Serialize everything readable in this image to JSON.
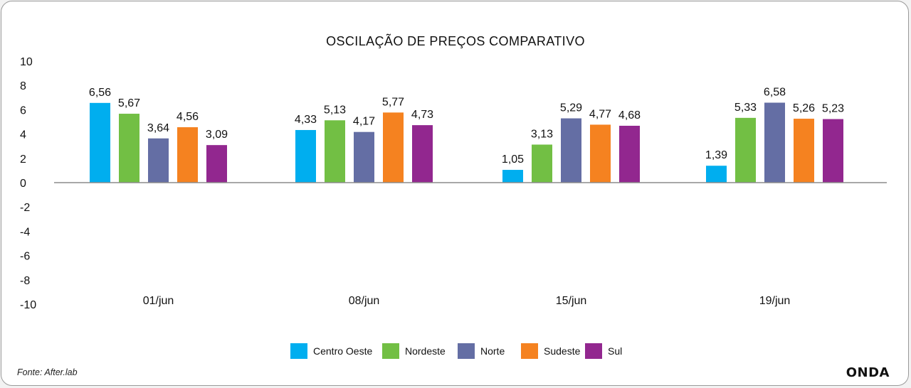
{
  "chart_data": {
    "type": "bar",
    "title": "OSCILAÇÃO DE PREÇOS COMPARATIVO",
    "categories": [
      "01/jun",
      "08/jun",
      "15/jun",
      "19/jun"
    ],
    "series": [
      {
        "name": "Centro Oeste",
        "color": "#00aeef",
        "values": [
          6.56,
          4.33,
          1.05,
          1.39
        ],
        "labels": [
          "6,56",
          "4,33",
          "1,05",
          "1,39"
        ]
      },
      {
        "name": "Nordeste",
        "color": "#72bf44",
        "values": [
          5.67,
          5.13,
          3.13,
          5.33
        ],
        "labels": [
          "5,67",
          "5,13",
          "3,13",
          "5,33"
        ]
      },
      {
        "name": "Norte",
        "color": "#646ea4",
        "values": [
          3.64,
          4.17,
          5.29,
          6.58
        ],
        "labels": [
          "3,64",
          "4,17",
          "5,29",
          "6,58"
        ]
      },
      {
        "name": "Sudeste",
        "color": "#f58220",
        "values": [
          4.56,
          5.77,
          4.77,
          5.26
        ],
        "labels": [
          "4,56",
          "5,77",
          "4,77",
          "5,26"
        ]
      },
      {
        "name": "Sul",
        "color": "#92278f",
        "values": [
          3.09,
          4.73,
          4.68,
          5.23
        ],
        "labels": [
          "3,09",
          "4,73",
          "4,68",
          "5,23"
        ]
      }
    ],
    "ylim": [
      -10,
      10
    ],
    "yticks": [
      "10",
      "8",
      "6",
      "4",
      "2",
      "0",
      "-2",
      "-4",
      "-6",
      "-8",
      "-10"
    ],
    "ytick_values": [
      10,
      8,
      6,
      4,
      2,
      0,
      -2,
      -4,
      -6,
      -8,
      -10
    ],
    "grid": false,
    "legend_position": "bottom-center",
    "xlabel": "",
    "ylabel": ""
  },
  "footer": {
    "source": "Fonte: After.lab",
    "brand": "ONDA"
  }
}
